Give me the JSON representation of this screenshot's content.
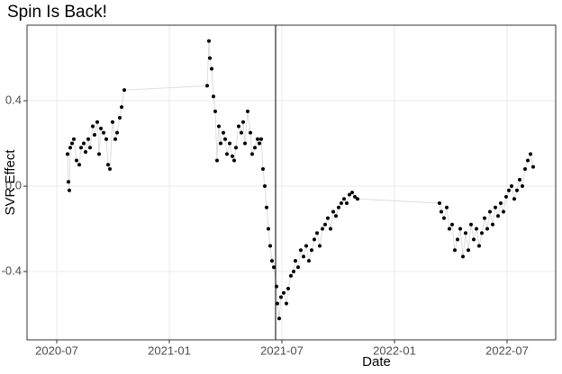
{
  "chart_data": {
    "type": "scatter",
    "title": "Spin Is Back!",
    "x_label": "Date",
    "y_label": "SVR Effect",
    "series": [
      {
        "color": "#000000",
        "line_color": "#dddddd",
        "x": [
          2020.548,
          2020.552,
          2020.556,
          2020.56,
          2020.568,
          2020.576,
          2020.588,
          2020.6,
          2020.608,
          2020.62,
          2020.628,
          2020.64,
          2020.648,
          2020.66,
          2020.668,
          2020.68,
          2020.688,
          2020.696,
          2020.708,
          2020.72,
          2020.728,
          2020.736,
          2020.748,
          2020.76,
          2020.768,
          2020.78,
          2020.788,
          2020.8,
          2021.168,
          2021.176,
          2021.18,
          2021.188,
          2021.196,
          2021.204,
          2021.212,
          2021.22,
          2021.228,
          2021.24,
          2021.248,
          2021.256,
          2021.268,
          2021.28,
          2021.288,
          2021.296,
          2021.308,
          2021.32,
          2021.328,
          2021.336,
          2021.348,
          2021.36,
          2021.368,
          2021.38,
          2021.392,
          2021.4,
          2021.408,
          2021.416,
          2021.424,
          2021.432,
          2021.44,
          2021.448,
          2021.456,
          2021.464,
          2021.476,
          2021.48,
          2021.488,
          2021.496,
          2021.508,
          2021.52,
          2021.528,
          2021.54,
          2021.552,
          2021.56,
          2021.572,
          2021.584,
          2021.596,
          2021.608,
          2021.62,
          2021.632,
          2021.644,
          2021.656,
          2021.668,
          2021.68,
          2021.692,
          2021.704,
          2021.716,
          2021.728,
          2021.74,
          2021.752,
          2021.764,
          2021.776,
          2021.788,
          2021.8,
          2021.812,
          2021.824,
          2021.836,
          2022.2,
          2022.208,
          2022.22,
          2022.232,
          2022.244,
          2022.256,
          2022.268,
          2022.28,
          2022.292,
          2022.304,
          2022.316,
          2022.328,
          2022.34,
          2022.352,
          2022.364,
          2022.376,
          2022.388,
          2022.4,
          2022.412,
          2022.424,
          2022.436,
          2022.448,
          2022.46,
          2022.472,
          2022.484,
          2022.496,
          2022.508,
          2022.52,
          2022.532,
          2022.544,
          2022.556,
          2022.568,
          2022.58,
          2022.592,
          2022.604,
          2022.616
        ],
        "values": [
          0.15,
          0.02,
          -0.02,
          0.18,
          0.2,
          0.22,
          0.12,
          0.1,
          0.18,
          0.2,
          0.16,
          0.22,
          0.18,
          0.28,
          0.24,
          0.3,
          0.15,
          0.27,
          0.25,
          0.22,
          0.1,
          0.08,
          0.3,
          0.22,
          0.25,
          0.32,
          0.37,
          0.45,
          0.47,
          0.68,
          0.6,
          0.55,
          0.42,
          0.35,
          0.12,
          0.28,
          0.2,
          0.25,
          0.22,
          0.15,
          0.2,
          0.14,
          0.12,
          0.18,
          0.28,
          0.25,
          0.3,
          0.2,
          0.35,
          0.25,
          0.15,
          0.18,
          0.22,
          0.2,
          0.22,
          0.08,
          0.0,
          -0.1,
          -0.2,
          -0.28,
          -0.35,
          -0.38,
          -0.47,
          -0.55,
          -0.62,
          -0.52,
          -0.5,
          -0.55,
          -0.48,
          -0.42,
          -0.4,
          -0.35,
          -0.38,
          -0.3,
          -0.33,
          -0.28,
          -0.35,
          -0.3,
          -0.25,
          -0.22,
          -0.28,
          -0.2,
          -0.18,
          -0.15,
          -0.2,
          -0.12,
          -0.14,
          -0.1,
          -0.08,
          -0.06,
          -0.08,
          -0.04,
          -0.03,
          -0.05,
          -0.06,
          -0.08,
          -0.12,
          -0.15,
          -0.1,
          -0.2,
          -0.18,
          -0.3,
          -0.25,
          -0.2,
          -0.33,
          -0.22,
          -0.3,
          -0.18,
          -0.25,
          -0.2,
          -0.28,
          -0.22,
          -0.15,
          -0.2,
          -0.12,
          -0.18,
          -0.1,
          -0.14,
          -0.08,
          -0.12,
          -0.05,
          -0.02,
          0.0,
          -0.06,
          -0.02,
          0.03,
          0.0,
          0.08,
          0.12,
          0.15,
          0.09
        ]
      }
    ],
    "vline": 2021.472,
    "vline_color": "#000000",
    "xlim": [
      2020.368,
      2022.716
    ],
    "ylim": [
      -0.72,
      0.754
    ],
    "xticks": [
      {
        "value": 2020.5,
        "label": "2020-07"
      },
      {
        "value": 2021.0,
        "label": "2021-01"
      },
      {
        "value": 2021.5,
        "label": "2021-07"
      },
      {
        "value": 2022.0,
        "label": "2022-01"
      },
      {
        "value": 2022.5,
        "label": "2022-07"
      }
    ],
    "yticks": [
      {
        "value": -0.4,
        "label": "-0.4"
      },
      {
        "value": 0.0,
        "label": "0.0"
      },
      {
        "value": 0.4,
        "label": "0.4"
      }
    ],
    "grid": true
  }
}
